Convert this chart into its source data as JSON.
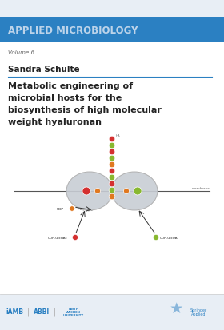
{
  "bg_color": "#e8eef5",
  "header_bar_color": "#2b80c2",
  "header_text": "APPLIED MICROBIOLOGY",
  "header_text_color": "#bdd4ea",
  "volume_text": "Volume 6",
  "author_text": "Sandra Schulte",
  "title_line1": "Metabolic engineering of",
  "title_line2": "microbial hosts for the",
  "title_line3": "biosynthesis of high molecular",
  "title_line4": "weight hyaluronan",
  "separator_color": "#2b80c2",
  "body_bg": "#ffffff",
  "logo_color": "#2b80c2",
  "gray_lobe": "#c8cdd4",
  "gray_lobe_edge": "#aaaaaa",
  "dot_red": "#d43030",
  "dot_orange": "#e07820",
  "dot_green": "#88b830",
  "arrow_color": "#333333",
  "membrane_color": "#555555",
  "text_dark": "#222222",
  "text_gray": "#666666"
}
